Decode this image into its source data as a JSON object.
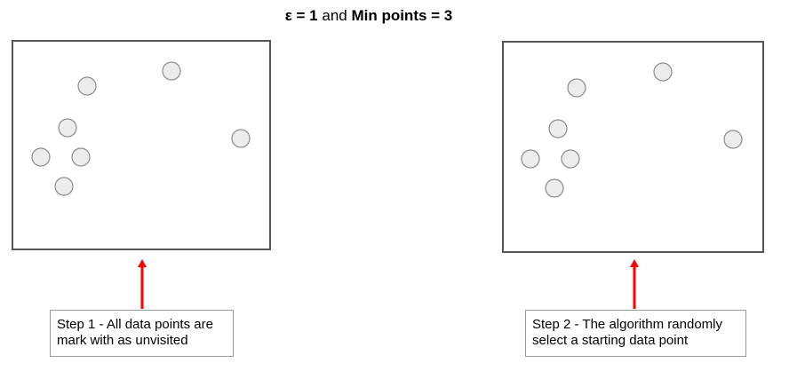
{
  "title": {
    "epsilon_part": "ε = 1",
    "and_part": " and ",
    "min_points_part": "Min points = 3"
  },
  "steps": [
    {
      "caption_line1": "Step 1 - All data points are",
      "caption_line2": "mark with as unvisited",
      "points": [
        {
          "state": "unvisited"
        },
        {
          "state": "unvisited"
        },
        {
          "state": "unvisited"
        },
        {
          "state": "unvisited"
        },
        {
          "state": "unvisited"
        },
        {
          "state": "unvisited"
        },
        {
          "state": "unvisited"
        },
        {
          "state": "unvisited"
        }
      ]
    },
    {
      "caption_line1": "Step 2 - The algorithm randomly",
      "caption_line2": "select a starting data point",
      "points": [
        {
          "state": "unvisited"
        },
        {
          "state": "unvisited"
        },
        {
          "state": "unvisited"
        },
        {
          "state": "unvisited"
        },
        {
          "state": "unvisited"
        },
        {
          "state": "unvisited"
        },
        {
          "state": "unvisited"
        },
        {
          "state": "selected"
        }
      ]
    }
  ],
  "colors": {
    "unvisited_fill": "#ececec",
    "unvisited_stroke": "#8c8c8c",
    "selected_fill": "#dea3a0",
    "selected_stroke": "#8c6a68",
    "arrow": "#ff0000"
  }
}
